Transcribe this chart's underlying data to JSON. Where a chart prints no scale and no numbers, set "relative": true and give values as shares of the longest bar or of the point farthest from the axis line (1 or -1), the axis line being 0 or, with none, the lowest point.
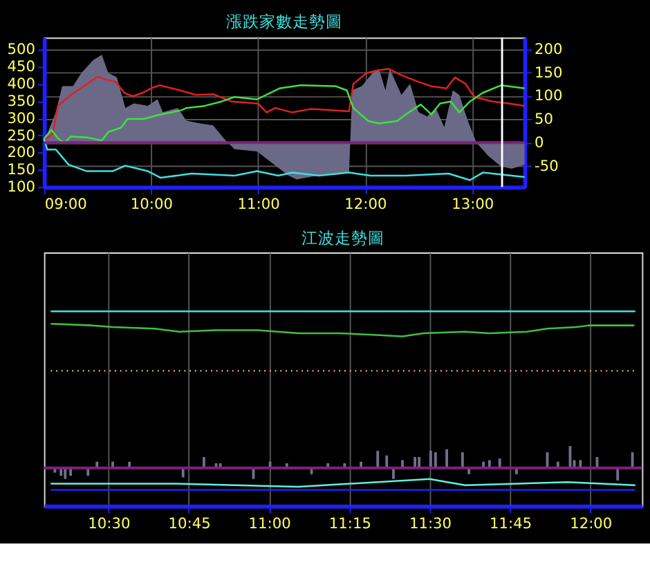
{
  "chart_data": [
    {
      "type": "line",
      "title": "漲跌家數走勢圖",
      "xlim": [
        9.0,
        13.49
      ],
      "xticks": [
        {
          "value": 9,
          "label": "09:00"
        },
        {
          "value": 10,
          "label": "10:00"
        },
        {
          "value": 11,
          "label": "11:00"
        },
        {
          "value": 12,
          "label": "12:00"
        },
        {
          "value": 13,
          "label": "13:00"
        }
      ],
      "ylim": [
        100,
        535
      ],
      "yticks": [
        100,
        150,
        200,
        250,
        300,
        350,
        400,
        450,
        500
      ],
      "y2lim": [
        -95,
        225
      ],
      "y2ticks": [
        -50,
        0,
        50,
        100,
        150,
        200
      ],
      "grid": true,
      "series": [
        {
          "type": "area",
          "axis": "y2",
          "color": "#6a6a88",
          "x": [
            9.0,
            9.03,
            9.11,
            9.17,
            9.27,
            9.35,
            9.46,
            9.54,
            9.6,
            9.68,
            9.76,
            9.84,
            9.97,
            10.06,
            10.11,
            10.25,
            10.33,
            10.44,
            10.58,
            10.68,
            10.78,
            10.99,
            11.15,
            11.28,
            11.36,
            11.57,
            11.85,
            11.88,
            11.97,
            12.07,
            12.13,
            12.19,
            12.23,
            12.34,
            12.42,
            12.5,
            12.58,
            12.66,
            12.74,
            12.82,
            12.88,
            12.96,
            13.04,
            13.15,
            13.27,
            13.37,
            13.49
          ],
          "values": [
            0,
            19,
            65,
            121,
            121,
            149,
            177,
            188,
            149,
            140,
            74,
            84,
            79,
            93,
            65,
            74,
            47,
            42,
            37,
            9,
            -14,
            -19,
            -47,
            -70,
            -79,
            -70,
            -65,
            112,
            121,
            149,
            158,
            112,
            158,
            102,
            126,
            65,
            56,
            74,
            33,
            112,
            102,
            47,
            0,
            -28,
            -51,
            -56,
            -47
          ]
        },
        {
          "color": "#e02020",
          "x": [
            9.0,
            9.08,
            9.13,
            9.25,
            9.37,
            9.5,
            9.58,
            9.67,
            9.75,
            9.83,
            9.92,
            10.0,
            10.08,
            10.25,
            10.42,
            10.58,
            10.75,
            10.92,
            11.0,
            11.08,
            11.16,
            11.32,
            11.49,
            11.65,
            11.85,
            11.89,
            12.01,
            12.09,
            12.22,
            12.34,
            12.5,
            12.62,
            12.76,
            12.84,
            12.94,
            13.02,
            13.19,
            13.35,
            13.49
          ],
          "values": [
            235,
            254,
            336,
            368,
            393,
            421,
            412,
            406,
            374,
            364,
            374,
            387,
            396,
            383,
            368,
            370,
            349,
            345,
            343,
            317,
            330,
            317,
            327,
            324,
            320,
            400,
            431,
            438,
            444,
            425,
            406,
            393,
            387,
            419,
            400,
            362,
            349,
            343,
            336
          ]
        },
        {
          "color": "#40e040",
          "x": [
            9.0,
            9.07,
            9.13,
            9.19,
            9.25,
            9.4,
            9.54,
            9.6,
            9.72,
            9.78,
            9.93,
            10.09,
            10.19,
            10.29,
            10.33,
            10.5,
            10.66,
            10.78,
            10.99,
            11.2,
            11.4,
            11.73,
            11.83,
            11.89,
            12.03,
            12.13,
            12.3,
            12.38,
            12.52,
            12.62,
            12.7,
            12.8,
            12.88,
            12.98,
            13.1,
            13.27,
            13.49
          ],
          "values": [
            241,
            266,
            241,
            228,
            247,
            244,
            235,
            260,
            273,
            298,
            298,
            311,
            317,
            324,
            330,
            336,
            349,
            362,
            355,
            387,
            396,
            393,
            381,
            330,
            292,
            285,
            292,
            311,
            340,
            311,
            343,
            349,
            317,
            349,
            374,
            396,
            387
          ]
        },
        {
          "color": "#40e0e0",
          "x": [
            9.0,
            9.03,
            9.11,
            9.23,
            9.4,
            9.64,
            9.76,
            9.97,
            10.09,
            10.38,
            10.78,
            10.99,
            11.19,
            11.32,
            11.57,
            11.85,
            12.05,
            12.38,
            12.78,
            12.98,
            13.1,
            13.49
          ],
          "values": [
            241,
            209,
            209,
            165,
            146,
            146,
            162,
            146,
            127,
            139,
            133,
            146,
            133,
            142,
            133,
            142,
            133,
            133,
            139,
            120,
            142,
            129
          ]
        }
      ],
      "ref_lines": [
        {
          "axis": "y2",
          "value": 0,
          "color": "#802080"
        },
        {
          "axis": "x",
          "value": 13.28,
          "color": "#ffffff"
        }
      ]
    },
    {
      "type": "line",
      "title": "江波走勢圖",
      "relative": true,
      "xlim": [
        10.32,
        12.14
      ],
      "xticks": [
        {
          "value": 10.5,
          "label": "10:30"
        },
        {
          "value": 10.75,
          "label": "10:45"
        },
        {
          "value": 11,
          "label": "11:00"
        },
        {
          "value": 11.25,
          "label": "11:15"
        },
        {
          "value": 11.5,
          "label": "11:30"
        },
        {
          "value": 11.75,
          "label": "11:45"
        },
        {
          "value": 12,
          "label": "12:00"
        }
      ],
      "tick_labels": "x",
      "grid": "x",
      "series": [
        {
          "type": "bar",
          "color": "#70708a",
          "x": [
            10.333,
            10.352,
            10.365,
            10.382,
            10.436,
            10.464,
            10.513,
            10.565,
            10.732,
            10.797,
            10.835,
            10.848,
            10.951,
            11.003,
            11.055,
            11.132,
            11.183,
            11.235,
            11.286,
            11.338,
            11.366,
            11.387,
            11.415,
            11.454,
            11.467,
            11.503,
            11.518,
            11.553,
            11.602,
            11.622,
            11.667,
            11.686,
            11.718,
            11.77,
            11.866,
            11.899,
            11.937,
            11.95,
            11.969,
            12.021,
            12.085,
            12.131
          ],
          "values": [
            -0.03,
            -0.05,
            -0.07,
            -0.05,
            -0.05,
            0.04,
            0.04,
            0.04,
            -0.06,
            0.07,
            0.03,
            0.03,
            -0.07,
            0.04,
            0.03,
            -0.04,
            0.03,
            0.03,
            0.04,
            0.11,
            0.08,
            -0.07,
            0.05,
            0.07,
            0.07,
            0.11,
            0.1,
            0.12,
            0.1,
            -0.04,
            0.04,
            0.05,
            0.06,
            -0.04,
            0.1,
            0.04,
            0.14,
            0.05,
            0.05,
            0.07,
            -0.08,
            0.1
          ]
        },
        {
          "color": "#40c040",
          "x": [
            10.32,
            10.449,
            10.513,
            10.642,
            10.719,
            10.835,
            10.964,
            11.093,
            11.222,
            11.325,
            11.415,
            11.48,
            11.609,
            11.686,
            11.802,
            11.866,
            11.957,
            11.995,
            12.137
          ],
          "values": [
            0.92,
            0.91,
            0.9,
            0.89,
            0.87,
            0.88,
            0.88,
            0.86,
            0.86,
            0.85,
            0.84,
            0.86,
            0.87,
            0.86,
            0.87,
            0.89,
            0.9,
            0.91,
            0.91
          ]
        },
        {
          "color": "#40e0e0",
          "x": [
            10.32,
            12.14
          ],
          "values": [
            1,
            1
          ]
        },
        {
          "color": "#e0a060",
          "line_style": "dotted",
          "x": [
            10.32,
            12.14
          ],
          "values": [
            0.62,
            0.62
          ]
        },
        {
          "color": "#60f0e0",
          "x": [
            10.32,
            10.71,
            11.09,
            11.5,
            11.61,
            11.93,
            12.14
          ],
          "values": [
            -0.1,
            -0.1,
            -0.12,
            -0.07,
            -0.11,
            -0.09,
            -0.11
          ]
        },
        {
          "color": "#2020ff",
          "x": [
            10.32,
            12.14
          ],
          "values": [
            -0.14,
            -0.14
          ]
        }
      ],
      "ref_lines": [
        {
          "axis": "y",
          "value": 0,
          "color": "#802080"
        }
      ]
    }
  ]
}
